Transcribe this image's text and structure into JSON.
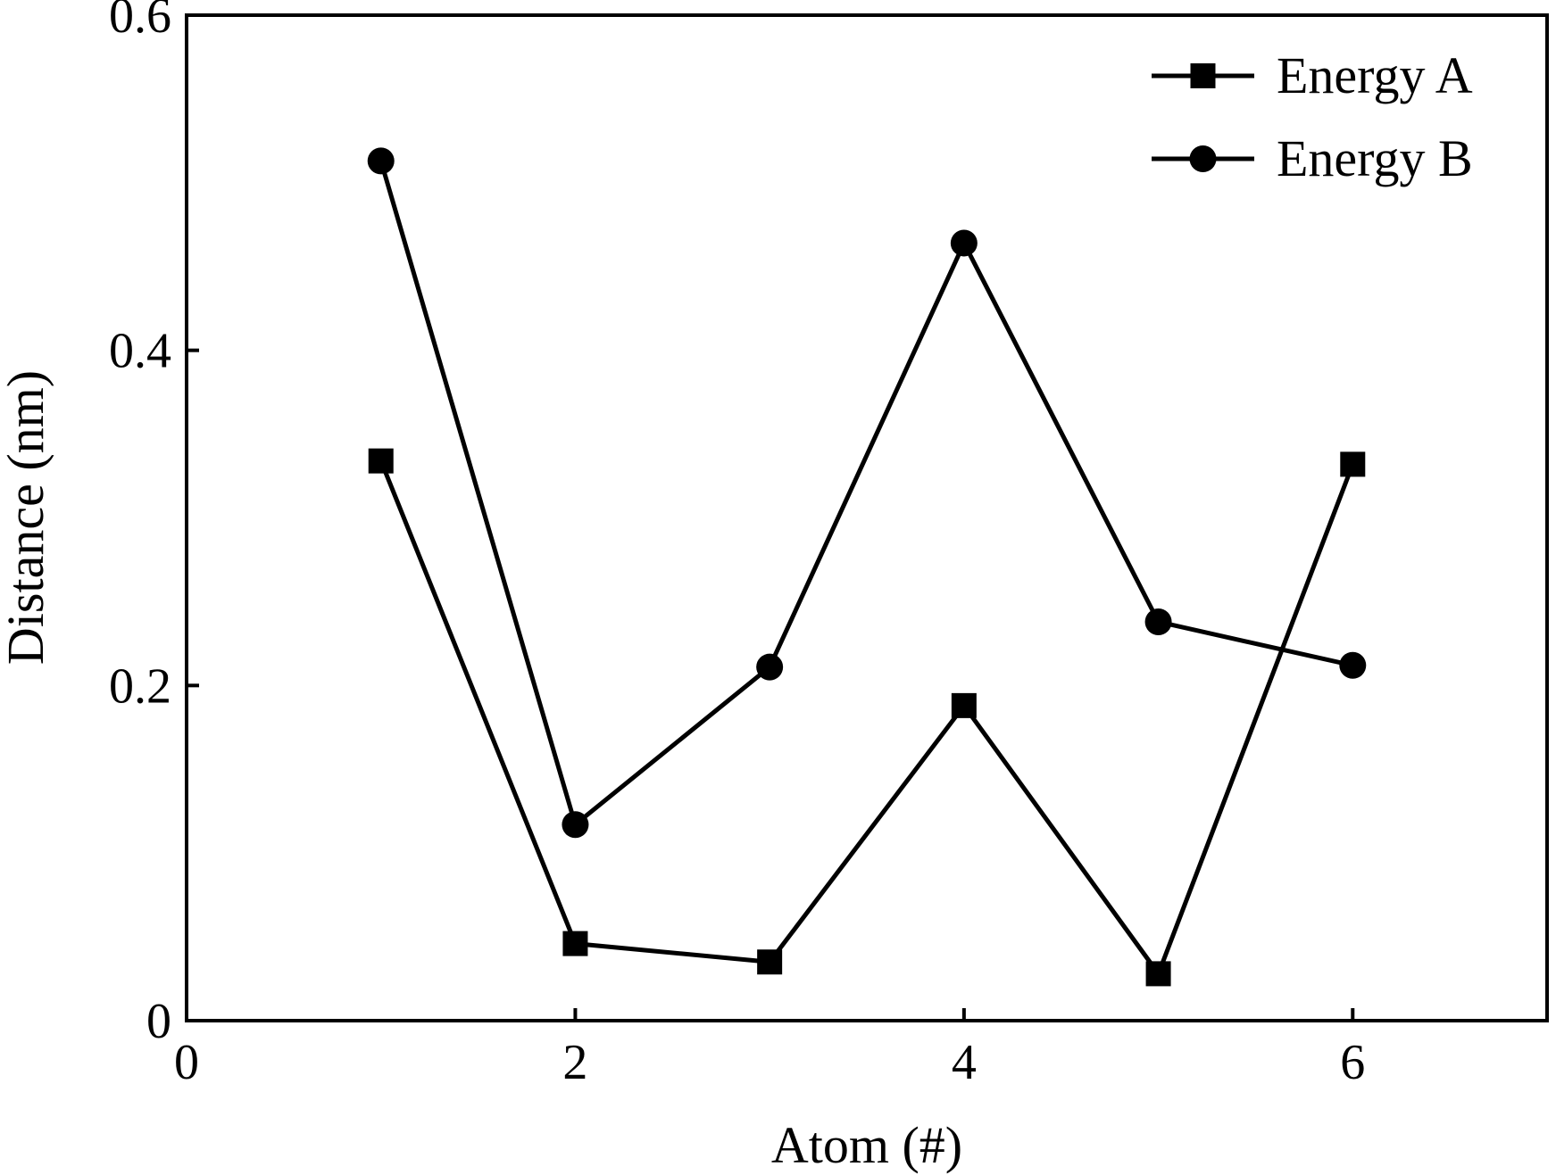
{
  "chart_data": {
    "type": "line",
    "title": "",
    "xlabel": "Atom (#)",
    "ylabel": "Distance (nm)",
    "xlim": [
      0,
      7
    ],
    "ylim": [
      0,
      0.6
    ],
    "xticks": [
      0,
      2,
      4,
      6
    ],
    "xtick_labels": [
      "0",
      "2",
      "4",
      "6"
    ],
    "yticks": [
      0,
      0.2,
      0.4,
      0.6
    ],
    "ytick_labels": [
      "0",
      "0.2",
      "0.4",
      "0.6"
    ],
    "grid": false,
    "legend_position": "top-right",
    "series": [
      {
        "name": "Energy A",
        "marker": "square",
        "color": "#000000",
        "x": [
          1,
          2,
          3,
          4,
          5,
          6
        ],
        "y": [
          0.334,
          0.046,
          0.035,
          0.188,
          0.028,
          0.332
        ]
      },
      {
        "name": "Energy B",
        "marker": "circle",
        "color": "#000000",
        "x": [
          1,
          2,
          3,
          4,
          5,
          6
        ],
        "y": [
          0.513,
          0.117,
          0.211,
          0.464,
          0.238,
          0.212
        ]
      }
    ]
  }
}
